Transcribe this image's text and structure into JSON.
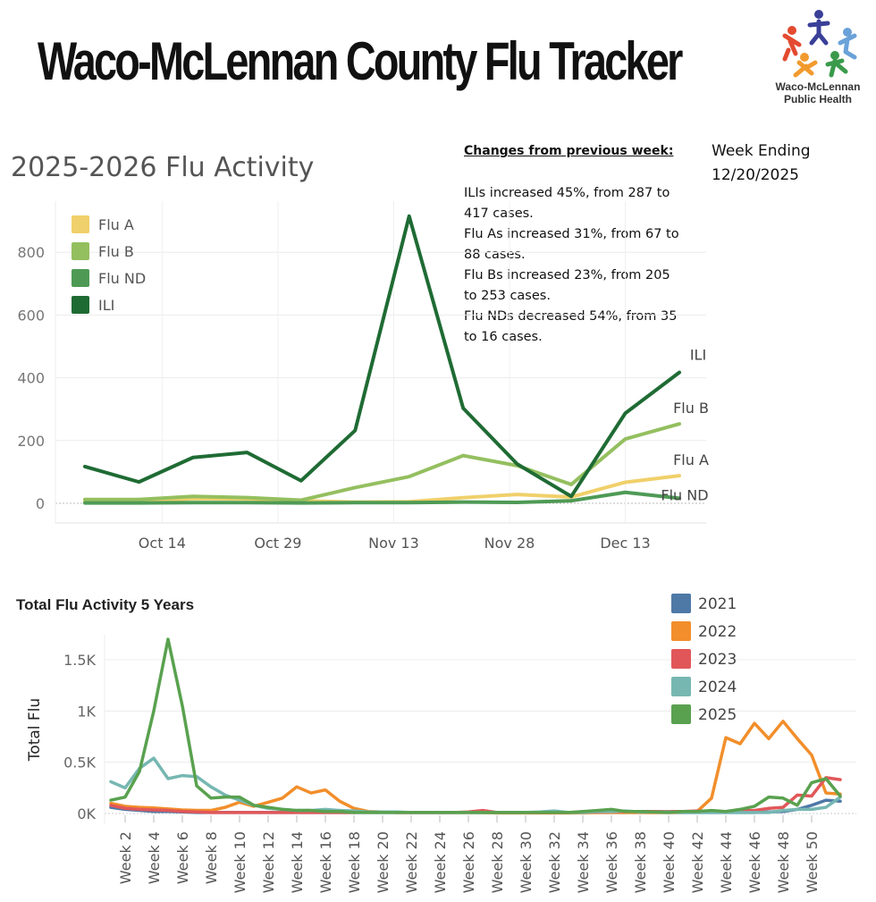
{
  "header": {
    "title": "Waco-McLennan County Flu Tracker",
    "logo_text_line1": "Waco-McLennan",
    "logo_text_line2": "Public Health"
  },
  "changes": {
    "heading": "Changes from previous week:",
    "lines": [
      "ILIs increased 45%, from 287 to",
      "417 cases.",
      "Flu As increased 31%, from 67 to",
      "88 cases.",
      "Flu Bs increased 23%, from 205",
      "to 253 cases.",
      "Flu NDs decreased 54%, from 35",
      "to 16 cases."
    ]
  },
  "week_ending": {
    "label": "Week Ending",
    "date": "12/20/2025"
  },
  "colors": {
    "flu_a": "#f0d06a",
    "flu_b": "#94bf5f",
    "flu_nd": "#4e9a55",
    "ili": "#1f6b34",
    "y2021": "#4e79a7",
    "y2022": "#f28e2b",
    "y2023": "#e15759",
    "y2024": "#76b7b2",
    "y2025": "#59a14f"
  },
  "chart_data": [
    {
      "type": "line",
      "title": "2025-2026 Flu Activity",
      "x": [
        "2025-10-04",
        "2025-10-11",
        "2025-10-18",
        "2025-10-25",
        "2025-11-01",
        "2025-11-08",
        "2025-11-15",
        "2025-11-22",
        "2025-11-29",
        "2025-12-06",
        "2025-12-13",
        "2025-12-20"
      ],
      "x_ticks": [
        "Oct 14",
        "Oct 29",
        "Nov 13",
        "Nov 28",
        "Dec 13"
      ],
      "ylim": [
        0,
        950
      ],
      "y_ticks": [
        0,
        200,
        400,
        600,
        800
      ],
      "grid": true,
      "legend_position": "top-left",
      "series": [
        {
          "name": "Flu A",
          "color_key": "flu_a",
          "end_label": "Flu A",
          "values": [
            5,
            3,
            15,
            14,
            8,
            4,
            5,
            18,
            28,
            20,
            67,
            88
          ]
        },
        {
          "name": "Flu B",
          "color_key": "flu_b",
          "end_label": "Flu B",
          "values": [
            12,
            12,
            22,
            18,
            10,
            50,
            85,
            152,
            120,
            60,
            205,
            253
          ]
        },
        {
          "name": "Flu ND",
          "color_key": "flu_nd",
          "end_label": "Flu ND",
          "values": [
            1,
            1,
            2,
            2,
            1,
            2,
            2,
            4,
            3,
            8,
            35,
            16
          ]
        },
        {
          "name": "ILI",
          "color_key": "ili",
          "end_label": "ILI",
          "values": [
            117,
            68,
            146,
            162,
            72,
            232,
            915,
            303,
            125,
            22,
            287,
            417
          ]
        }
      ]
    },
    {
      "type": "line",
      "title": "Total Flu Activity 5 Years",
      "ylabel": "Total Flu",
      "x": [
        1,
        2,
        3,
        4,
        5,
        6,
        7,
        8,
        9,
        10,
        11,
        12,
        13,
        14,
        15,
        16,
        17,
        18,
        19,
        20,
        21,
        22,
        23,
        24,
        25,
        26,
        27,
        28,
        29,
        30,
        31,
        32,
        33,
        34,
        35,
        36,
        37,
        38,
        39,
        40,
        41,
        42,
        43,
        44,
        45,
        46,
        47,
        48,
        49,
        50,
        51,
        52
      ],
      "x_ticks": [
        "Week 2",
        "Week 4",
        "Week 6",
        "Week 8",
        "Week 10",
        "Week 12",
        "Week 14",
        "Week 16",
        "Week 18",
        "Week 20",
        "Week 22",
        "Week 24",
        "Week 26",
        "Week 28",
        "Week 30",
        "Week 32",
        "Week 34",
        "Week 36",
        "Week 38",
        "Week 40",
        "Week 42",
        "Week 44",
        "Week 46",
        "Week 48",
        "Week 50"
      ],
      "ylim": [
        0,
        1800
      ],
      "y_ticks": [
        "0K",
        "0.5K",
        "1K",
        "1.5K"
      ],
      "y_tick_values": [
        0,
        500,
        1000,
        1500
      ],
      "grid": true,
      "legend_position": "top-right",
      "series": [
        {
          "name": "2021",
          "color_key": "y2021",
          "values": [
            60,
            40,
            30,
            20,
            20,
            15,
            10,
            10,
            10,
            10,
            10,
            10,
            10,
            10,
            10,
            10,
            10,
            10,
            10,
            10,
            10,
            10,
            10,
            10,
            10,
            10,
            10,
            10,
            10,
            10,
            10,
            10,
            10,
            10,
            10,
            10,
            10,
            10,
            10,
            10,
            10,
            10,
            10,
            10,
            10,
            10,
            15,
            20,
            40,
            80,
            130,
            120
          ]
        },
        {
          "name": "2022",
          "color_key": "y2022",
          "values": [
            100,
            70,
            60,
            55,
            45,
            35,
            30,
            30,
            60,
            110,
            70,
            110,
            150,
            260,
            200,
            230,
            120,
            50,
            20,
            15,
            10,
            10,
            10,
            10,
            10,
            10,
            10,
            5,
            5,
            5,
            5,
            5,
            5,
            5,
            10,
            10,
            10,
            10,
            10,
            10,
            10,
            20,
            150,
            740,
            680,
            880,
            730,
            900,
            730,
            570,
            200,
            190
          ]
        },
        {
          "name": "2023",
          "color_key": "y2023",
          "values": [
            80,
            50,
            40,
            35,
            30,
            20,
            15,
            10,
            10,
            10,
            10,
            10,
            10,
            10,
            10,
            10,
            10,
            10,
            15,
            15,
            10,
            10,
            10,
            10,
            10,
            15,
            30,
            10,
            10,
            10,
            10,
            10,
            10,
            15,
            15,
            20,
            20,
            20,
            20,
            20,
            20,
            25,
            20,
            20,
            25,
            30,
            50,
            60,
            180,
            170,
            350,
            330
          ]
        },
        {
          "name": "2024",
          "color_key": "y2024",
          "values": [
            310,
            250,
            440,
            540,
            340,
            370,
            360,
            260,
            180,
            130,
            80,
            50,
            40,
            30,
            30,
            40,
            30,
            25,
            15,
            15,
            15,
            10,
            10,
            10,
            10,
            10,
            10,
            10,
            10,
            10,
            15,
            25,
            10,
            10,
            20,
            20,
            25,
            15,
            15,
            15,
            10,
            10,
            10,
            10,
            10,
            10,
            10,
            30,
            40,
            40,
            60,
            160
          ]
        },
        {
          "name": "2025",
          "color_key": "y2025",
          "values": [
            130,
            160,
            410,
            1000,
            1700,
            1050,
            270,
            150,
            160,
            160,
            80,
            60,
            40,
            30,
            30,
            20,
            20,
            10,
            10,
            10,
            10,
            10,
            10,
            10,
            10,
            10,
            10,
            10,
            10,
            10,
            10,
            10,
            10,
            20,
            30,
            40,
            20,
            20,
            15,
            10,
            20,
            20,
            30,
            20,
            40,
            70,
            160,
            150,
            80,
            300,
            340,
            170
          ]
        }
      ]
    }
  ]
}
